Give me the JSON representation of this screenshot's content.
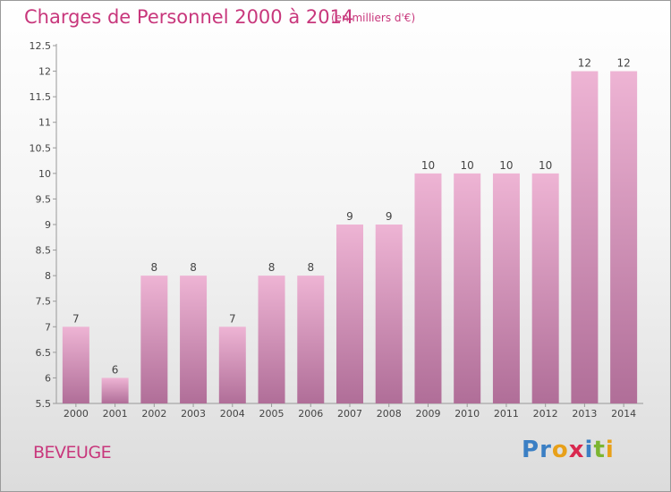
{
  "header": {
    "title": "Charges de Personnel 2000 à 2014",
    "unit": "(en milliers d'€)"
  },
  "commune": "BEVEUGE",
  "logo": {
    "text": "Proxiti",
    "letters": [
      {
        "ch": "P",
        "color": "#3b7fc4"
      },
      {
        "ch": "r",
        "color": "#3b7fc4"
      },
      {
        "ch": "o",
        "color": "#e8a019"
      },
      {
        "ch": "x",
        "color": "#d9284f"
      },
      {
        "ch": "i",
        "color": "#3b7fc4"
      },
      {
        "ch": "t",
        "color": "#7cb531"
      },
      {
        "ch": "i",
        "color": "#e8a019"
      }
    ]
  },
  "colors": {
    "bar_top": "#eeb4d4",
    "bar_bottom": "#b06e98",
    "accent": "#c8377c"
  },
  "chart_data": {
    "type": "bar",
    "title": "Charges de Personnel 2000 à 2014",
    "ylabel": "",
    "xlabel": "",
    "categories": [
      "2000",
      "2001",
      "2002",
      "2003",
      "2004",
      "2005",
      "2006",
      "2007",
      "2008",
      "2009",
      "2010",
      "2011",
      "2012",
      "2013",
      "2014"
    ],
    "values": [
      7,
      6,
      8,
      8,
      7,
      8,
      8,
      9,
      9,
      10,
      10,
      10,
      10,
      12,
      12
    ],
    "data_labels": [
      "7",
      "6",
      "8",
      "8",
      "7",
      "8",
      "8",
      "9",
      "9",
      "10",
      "10",
      "10",
      "10",
      "12",
      "12"
    ],
    "ylim": [
      5.5,
      12.5
    ],
    "yticks": [
      5.5,
      6,
      6.5,
      7,
      7.5,
      8,
      8.5,
      9,
      9.5,
      10,
      10.5,
      11,
      11.5,
      12,
      12.5
    ],
    "ytick_labels": [
      "5.5",
      "6",
      "6.5",
      "7",
      "7.5",
      "8",
      "8.5",
      "9",
      "9.5",
      "10",
      "10.5",
      "11",
      "11.5",
      "12",
      "12.5"
    ],
    "grid": false,
    "legend": "none"
  }
}
